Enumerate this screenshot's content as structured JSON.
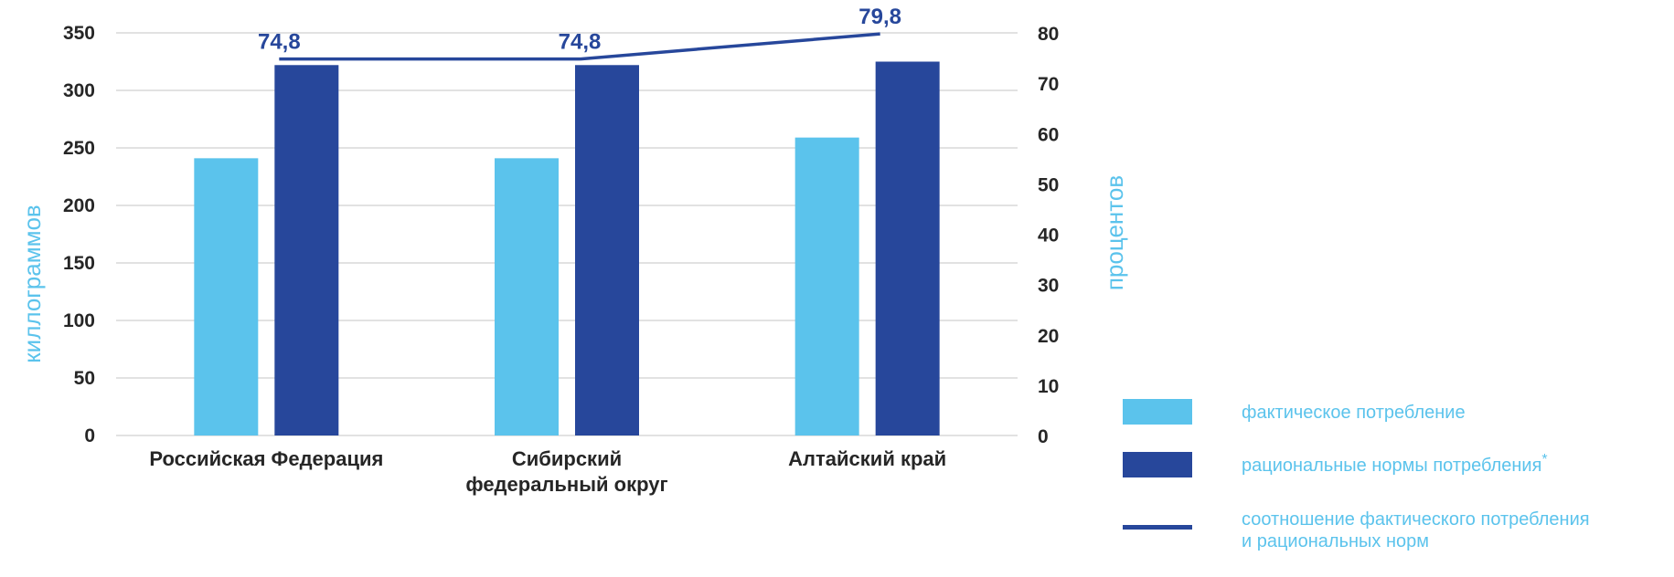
{
  "chart_data": {
    "type": "bar",
    "categories": [
      [
        "Российская Федерация"
      ],
      [
        "Сибирский",
        "федеральный округ"
      ],
      [
        "Алтайский край"
      ]
    ],
    "series": [
      {
        "name": "фактическое потребление",
        "type": "bar",
        "axis": "left",
        "color": "#5BC3EC",
        "values": [
          241,
          241,
          259
        ]
      },
      {
        "name": "рациональные нормы потребления*",
        "type": "bar",
        "axis": "left",
        "color": "#27479B",
        "values": [
          322,
          322,
          325
        ]
      },
      {
        "name": "соотношение фактического потребления и рациональных норм",
        "type": "line",
        "axis": "right",
        "color": "#27479B",
        "values": [
          74.8,
          74.8,
          79.8
        ],
        "labels": [
          "74,8",
          "74,8",
          "79,8"
        ]
      }
    ],
    "ylabel_left": "киллограммов",
    "ylabel_right": "процентов",
    "ylim_left": [
      0,
      350
    ],
    "yticks_left": [
      0,
      50,
      100,
      150,
      200,
      250,
      300,
      350
    ],
    "ylim_right": [
      0,
      80
    ],
    "yticks_right": [
      0,
      10,
      20,
      30,
      40,
      50,
      60,
      70,
      80
    ],
    "grid": true,
    "legend": {
      "position": "right",
      "entries": [
        {
          "lines": [
            "фактическое потребление"
          ],
          "symbol": "box",
          "color": "#5BC3EC"
        },
        {
          "lines": [
            "рациональные нормы потребления"
          ],
          "sup": "*",
          "symbol": "box",
          "color": "#27479B"
        },
        {
          "lines": [
            "соотношение фактического потребления",
            "и рациональных норм"
          ],
          "symbol": "line",
          "color": "#27479B"
        }
      ]
    }
  }
}
